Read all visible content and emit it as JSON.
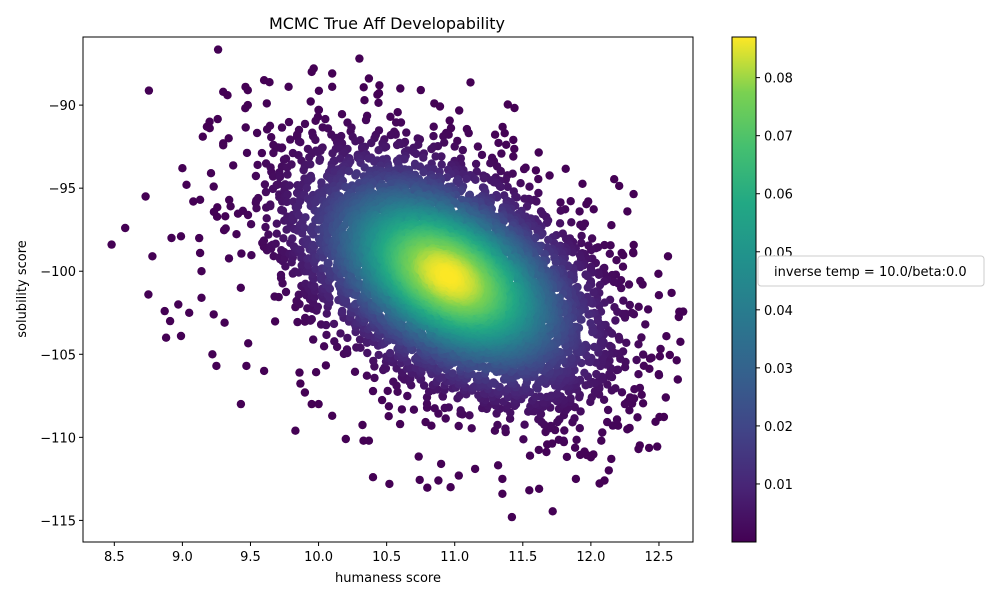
{
  "chart_data": {
    "type": "scatter",
    "title": "MCMC True Aff Developability",
    "xlabel": "humaness score",
    "ylabel": "solubility score",
    "xlim": [
      8.27,
      12.75
    ],
    "ylim": [
      -116.3,
      -85.9
    ],
    "xticks": [
      8.5,
      9.0,
      9.5,
      10.0,
      10.5,
      11.0,
      11.5,
      12.0,
      12.5
    ],
    "yticks": [
      -90,
      -95,
      -100,
      -105,
      -110,
      -115
    ],
    "xtick_labels": [
      "8.5",
      "9.0",
      "9.5",
      "10.0",
      "10.5",
      "11.0",
      "11.5",
      "12.0",
      "12.5"
    ],
    "ytick_labels": [
      "−90",
      "−95",
      "−100",
      "−105",
      "−110",
      "−115"
    ],
    "grid": false,
    "legend": {
      "placement": "right",
      "entries": [
        "inverse temp = 10.0/beta:0.0"
      ]
    },
    "colorbar": {
      "colormap": "viridis",
      "range": [
        0.0,
        0.087
      ],
      "ticks": [
        0.01,
        0.02,
        0.03,
        0.04,
        0.05,
        0.06,
        0.07,
        0.08
      ],
      "tick_labels": [
        "0.01",
        "0.02",
        "0.03",
        "0.04",
        "0.05",
        "0.06",
        "0.07",
        "0.08"
      ]
    },
    "series": [
      {
        "distribution": "bivariate-normal",
        "mean_x": 10.95,
        "mean_y": -100.3,
        "sd_x": 0.55,
        "sd_y": 3.6,
        "correlation": -0.45,
        "color_by": "density",
        "outlier_points": [
          [
            8.48,
            -98.4
          ],
          [
            8.58,
            -97.4
          ],
          [
            8.73,
            -95.5
          ],
          [
            8.78,
            -99.1
          ],
          [
            8.75,
            -101.4
          ],
          [
            8.87,
            -102.4
          ],
          [
            8.88,
            -104.0
          ],
          [
            8.91,
            -103.0
          ],
          [
            8.92,
            -98.0
          ],
          [
            8.97,
            -102.0
          ],
          [
            8.99,
            -97.9
          ],
          [
            8.99,
            -103.9
          ],
          [
            9.0,
            -93.8
          ],
          [
            9.03,
            -94.8
          ],
          [
            9.05,
            -102.5
          ],
          [
            9.08,
            -95.8
          ],
          [
            9.13,
            -95.7
          ],
          [
            9.13,
            -98.9
          ],
          [
            9.14,
            -100.0
          ],
          [
            9.14,
            -101.6
          ],
          [
            9.15,
            -91.9
          ],
          [
            9.18,
            -91.3
          ],
          [
            9.2,
            -91.0
          ],
          [
            9.21,
            -94.1
          ],
          [
            9.22,
            -105.0
          ],
          [
            9.23,
            -102.6
          ],
          [
            9.25,
            -105.7
          ],
          [
            9.3,
            -89.2
          ],
          [
            9.3,
            -92.3
          ],
          [
            9.31,
            -103.1
          ],
          [
            9.34,
            -92.0
          ],
          [
            9.43,
            -108.0
          ],
          [
            9.47,
            -105.7
          ],
          [
            9.48,
            -89.1
          ],
          [
            9.48,
            -90.0
          ],
          [
            9.6,
            -88.5
          ],
          [
            9.6,
            -106.0
          ],
          [
            9.62,
            -89.9
          ],
          [
            9.78,
            -88.9
          ],
          [
            9.83,
            -109.6
          ],
          [
            9.86,
            -106.1
          ],
          [
            9.9,
            -107.3
          ],
          [
            9.95,
            -88.0
          ],
          [
            9.95,
            -108.0
          ],
          [
            10.0,
            -108.0
          ],
          [
            10.1,
            -88.9
          ],
          [
            10.1,
            -108.7
          ],
          [
            10.1,
            -88.1
          ],
          [
            10.2,
            -110.1
          ],
          [
            10.33,
            -110.2
          ],
          [
            10.37,
            -110.2
          ],
          [
            10.4,
            -112.4
          ],
          [
            10.52,
            -112.8
          ],
          [
            10.3,
            -87.2
          ],
          [
            10.37,
            -88.4
          ],
          [
            10.6,
            -89.0
          ],
          [
            10.85,
            -89.9
          ],
          [
            10.88,
            -112.6
          ],
          [
            10.9,
            -111.6
          ],
          [
            10.97,
            -113.0
          ],
          [
            11.03,
            -112.3
          ],
          [
            11.15,
            -111.9
          ],
          [
            11.17,
            -92.5
          ],
          [
            11.35,
            -112.5
          ],
          [
            11.35,
            -113.4
          ],
          [
            11.42,
            -114.8
          ],
          [
            11.62,
            -113.1
          ],
          [
            11.8,
            -110.2
          ],
          [
            11.89,
            -112.5
          ],
          [
            12.0,
            -111.2
          ],
          [
            12.1,
            -112.6
          ],
          [
            12.15,
            -111.3
          ],
          [
            12.2,
            -109.3
          ],
          [
            12.35,
            -110.7
          ],
          [
            12.55,
            -107.6
          ],
          [
            12.42,
            -102.3
          ],
          [
            12.4,
            -103.2
          ],
          [
            12.38,
            -100.8
          ],
          [
            12.28,
            -100.8
          ],
          [
            12.12,
            -100.5
          ],
          [
            12.0,
            -100.6
          ],
          [
            12.3,
            -102.5
          ],
          [
            12.35,
            -104.4
          ],
          [
            12.35,
            -106.2
          ],
          [
            12.25,
            -108.0
          ],
          [
            11.93,
            -98.3
          ],
          [
            11.6,
            -95.8
          ],
          [
            11.0,
            -92.5
          ],
          [
            11.2,
            -93.0
          ]
        ]
      }
    ]
  }
}
